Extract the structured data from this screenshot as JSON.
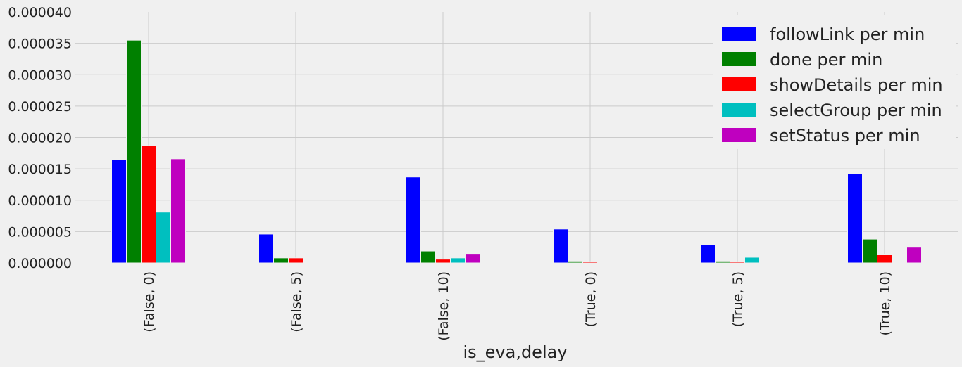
{
  "chart_data": {
    "type": "bar",
    "title": "",
    "xlabel": "is_eva,delay",
    "ylabel": "",
    "ylim": [
      0,
      4e-05
    ],
    "yticks": [
      "0.000000",
      "0.000005",
      "0.000010",
      "0.000015",
      "0.000020",
      "0.000025",
      "0.000030",
      "0.000035",
      "0.000040"
    ],
    "ytick_values": [
      0,
      5e-06,
      1e-05,
      1.5e-05,
      2e-05,
      2.5e-05,
      3e-05,
      3.5e-05,
      4e-05
    ],
    "categories": [
      "(False, 0)",
      "(False, 5)",
      "(False, 10)",
      "(True, 0)",
      "(True, 5)",
      "(True, 10)"
    ],
    "grid": true,
    "legend_position": "top-right",
    "series": [
      {
        "name": "followLink per min",
        "color": "#0000ff",
        "values": [
          1.65e-05,
          4.6e-06,
          1.37e-05,
          5.4e-06,
          2.9e-06,
          1.42e-05
        ]
      },
      {
        "name": "done per min",
        "color": "#008000",
        "values": [
          3.55e-05,
          8e-07,
          1.9e-06,
          3e-07,
          3e-07,
          3.8e-06
        ]
      },
      {
        "name": "showDetails per min",
        "color": "#ff0000",
        "values": [
          1.87e-05,
          8e-07,
          6e-07,
          2e-07,
          2e-07,
          1.4e-06
        ]
      },
      {
        "name": "selectGroup per min",
        "color": "#00bfbf",
        "values": [
          8.1e-06,
          0.0,
          8e-07,
          0.0,
          9e-07,
          0.0
        ]
      },
      {
        "name": "setStatus per min",
        "color": "#bf00bf",
        "values": [
          1.66e-05,
          0.0,
          1.5e-06,
          0.0,
          0.0,
          2.5e-06
        ]
      }
    ]
  }
}
